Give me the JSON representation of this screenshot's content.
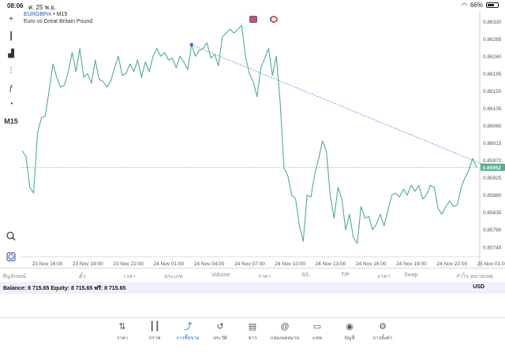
{
  "status_bar": {
    "time": "08:06",
    "date": "ศ. 25 พ.ย.",
    "battery": "66%",
    "battery_level": 0.66
  },
  "symbol": {
    "name": "EURGBPm",
    "separator": " • ",
    "timeframe": "M15",
    "description": "Euro vs Great Britain Pound"
  },
  "toolbar": {
    "items": [
      {
        "name": "crosshair-icon",
        "glyph": "+"
      },
      {
        "name": "candlestick-icon",
        "glyph": "┃"
      },
      {
        "name": "bar-chart-icon",
        "glyph": "▟"
      },
      {
        "name": "indicators-icon",
        "glyph": "⫶"
      },
      {
        "name": "function-icon",
        "glyph": "ƒ"
      },
      {
        "name": "objects-icon",
        "glyph": "◔"
      }
    ],
    "timeframe_label": "M15",
    "zoom_icon": "zoom-icon",
    "sync_icon": "sync-icon"
  },
  "chart_data": {
    "type": "line",
    "symbol": "EURGBPm",
    "x_tick_labels": [
      "23 Nov 16:00",
      "23 Nov 19:00",
      "23 Nov 22:00",
      "24 Nov 01:00",
      "24 Nov 04:00",
      "24 Nov 07:00",
      "24 Nov 10:00",
      "24 Nov 13:00",
      "24 Nov 16:00",
      "24 Nov 19:00",
      "24 Nov 22:00",
      "25 Nov 01:00"
    ],
    "y_tick_labels": [
      "0.86330",
      "0.86285",
      "0.86240",
      "0.86195",
      "0.86150",
      "0.86105",
      "0.86060",
      "0.86015",
      "0.85970",
      "0.85925",
      "0.85880",
      "0.85835",
      "0.85790",
      "0.85745"
    ],
    "ylim": [
      0.8572,
      0.86345
    ],
    "current_price": "0.85952",
    "current_price_value": 0.85952,
    "series": [
      {
        "values": [
          0.85995,
          0.8598,
          0.859,
          0.85885,
          0.8604,
          0.8608,
          0.86085,
          0.8615,
          0.8622,
          0.86185,
          0.8616,
          0.86165,
          0.862,
          0.8625,
          0.862,
          0.8626,
          0.86185,
          0.86195,
          0.8617,
          0.8623,
          0.8618,
          0.86175,
          0.8616,
          0.86175,
          0.8621,
          0.8624,
          0.8619,
          0.86195,
          0.8622,
          0.862,
          0.8623,
          0.86185,
          0.86225,
          0.862,
          0.8624,
          0.8626,
          0.8624,
          0.8625,
          0.8623,
          0.86235,
          0.8621,
          0.8624,
          0.86225,
          0.86205,
          0.8627,
          0.8624,
          0.86255,
          0.8626,
          0.86275,
          0.86235,
          0.86245,
          0.86215,
          0.8629,
          0.863,
          0.8631,
          0.863,
          0.8631,
          0.8632,
          0.8624,
          0.86195,
          0.86175,
          0.86135,
          0.8621,
          0.86235,
          0.8626,
          0.8619,
          0.8624,
          0.8612,
          0.8595,
          0.8593,
          0.8588,
          0.8587,
          0.858,
          0.8576,
          0.8588,
          0.85875,
          0.85935,
          0.85975,
          0.8602,
          0.85995,
          0.8588,
          0.8582,
          0.859,
          0.8587,
          0.8579,
          0.8583,
          0.8577,
          0.85755,
          0.8585,
          0.8582,
          0.85825,
          0.8579,
          0.85805,
          0.8583,
          0.858,
          0.8584,
          0.8588,
          0.85885,
          0.85875,
          0.85895,
          0.8588,
          0.85905,
          0.8589,
          0.85905,
          0.8587,
          0.8588,
          0.85905,
          0.859,
          0.85845,
          0.8583,
          0.8585,
          0.85865,
          0.8585,
          0.85855,
          0.859,
          0.85925,
          0.85945,
          0.85975,
          0.85952
        ]
      }
    ],
    "trendline": {
      "start_index": 44,
      "start_value": 0.8627,
      "end_index": 120,
      "end_value": 0.85958
    },
    "grid": false,
    "line_color": "#4caf8a"
  },
  "tabs": {
    "items": [
      "สัญลักษณ์",
      "ตั๋ว",
      "เวลา",
      "ประเภท",
      "Volume",
      "ราคา",
      "S/L",
      "T/P",
      "ราคา",
      "Swap",
      "กำไร",
      "หมายเหตุ"
    ]
  },
  "account": {
    "balance_text": "Balance: 8 715.65 Equity: 8 715.65 ฟรี: 8 715.65",
    "currency": "USD"
  },
  "bottom_nav": {
    "items": [
      {
        "label": "ราคา",
        "icon": "quotes-icon",
        "glyph": "⇅"
      },
      {
        "label": "กราฟ",
        "icon": "chart-icon",
        "glyph": "┃┃"
      },
      {
        "label": "การซื้อขาย",
        "icon": "trade-icon",
        "glyph": "⤴"
      },
      {
        "label": "ประวัติ",
        "icon": "history-icon",
        "glyph": "↺"
      },
      {
        "label": "ข่าว",
        "icon": "news-icon",
        "glyph": "▤"
      },
      {
        "label": "กล่องจดหมาย",
        "icon": "mailbox-icon",
        "glyph": "@"
      },
      {
        "label": "แชท",
        "icon": "chat-icon",
        "glyph": "▭"
      },
      {
        "label": "บัญชี",
        "icon": "account-icon",
        "glyph": "◉"
      },
      {
        "label": "การตั้งค่า",
        "icon": "settings-icon",
        "glyph": "⚙"
      }
    ],
    "active_index": 2,
    "accent": "#1a73e8"
  }
}
